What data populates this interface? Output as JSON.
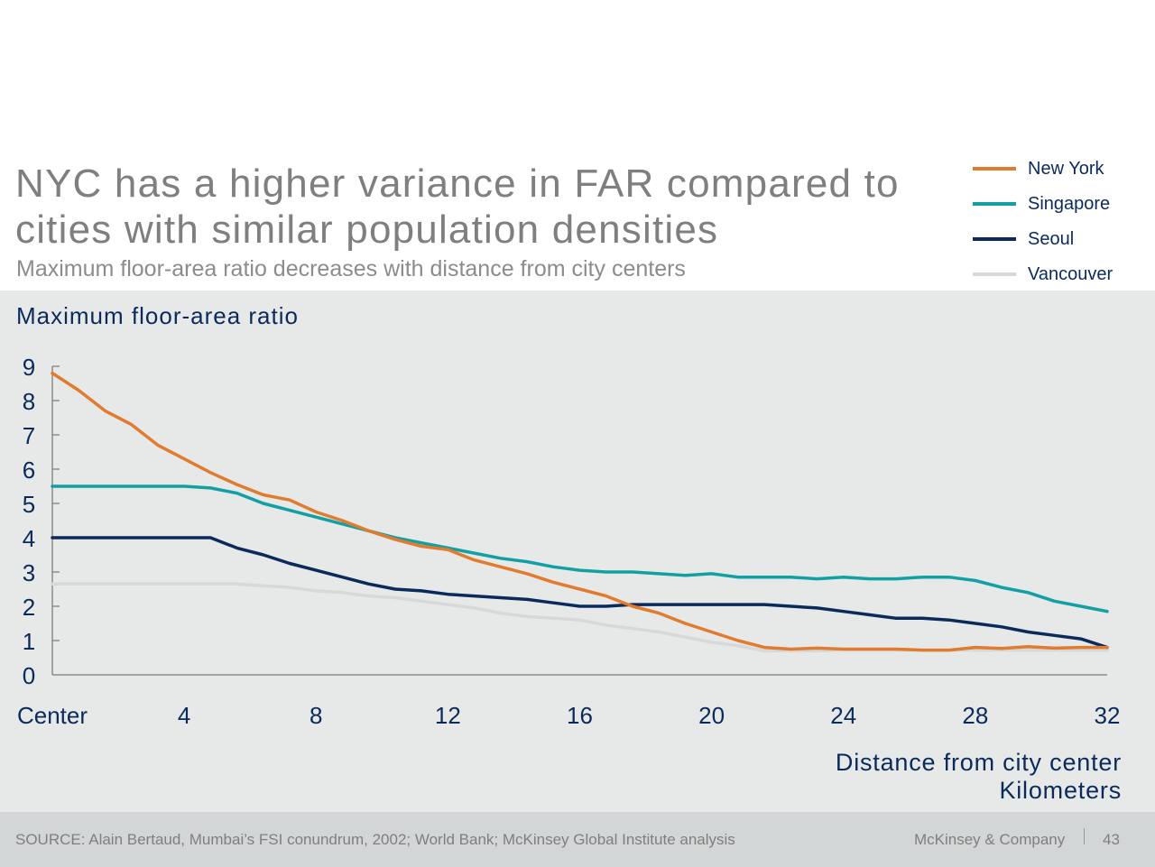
{
  "header": {
    "title": "NYC has a higher variance in FAR compared to cities with similar population densities",
    "subtitle": "Maximum floor-area ratio decreases with distance from city centers"
  },
  "legend": [
    {
      "name": "New York",
      "color": "#e07b2f"
    },
    {
      "name": "Singapore",
      "color": "#12a0a3"
    },
    {
      "name": "Seoul",
      "color": "#0b2a5b"
    },
    {
      "name": "Vancouver",
      "color": "#d7d9d9"
    }
  ],
  "chart_data": {
    "type": "line",
    "ylabel": "Maximum floor-area ratio",
    "xlabel": "Distance from city center",
    "xunit": "Kilometers",
    "xlim": [
      0,
      32
    ],
    "ylim": [
      0,
      9
    ],
    "x_ticks": [
      "Center",
      "4",
      "8",
      "12",
      "16",
      "20",
      "24",
      "28",
      "32"
    ],
    "y_ticks": [
      "0",
      "1",
      "2",
      "3",
      "4",
      "5",
      "6",
      "7",
      "8",
      "9"
    ],
    "grid": false,
    "legend_position": "top-right",
    "x": [
      0,
      0.8,
      1.6,
      2.4,
      3.2,
      4.0,
      4.8,
      5.6,
      6.4,
      7.2,
      8.0,
      8.8,
      9.6,
      10.4,
      11.2,
      12.0,
      12.8,
      13.6,
      14.4,
      15.2,
      16.0,
      16.8,
      17.6,
      18.4,
      19.2,
      20.0,
      20.8,
      21.6,
      22.4,
      23.2,
      24.0,
      24.8,
      25.6,
      26.4,
      27.2,
      28.0,
      28.8,
      29.6,
      30.4,
      31.2,
      32.0
    ],
    "series": [
      {
        "name": "New York",
        "color": "#e07b2f",
        "values": [
          8.8,
          8.3,
          7.7,
          7.3,
          6.7,
          6.3,
          5.9,
          5.55,
          5.25,
          5.1,
          4.75,
          4.5,
          4.2,
          3.95,
          3.75,
          3.65,
          3.35,
          3.15,
          2.95,
          2.7,
          2.5,
          2.3,
          2.0,
          1.8,
          1.5,
          1.25,
          1.0,
          0.8,
          0.75,
          0.78,
          0.75,
          0.75,
          0.75,
          0.72,
          0.72,
          0.8,
          0.77,
          0.82,
          0.78,
          0.8,
          0.8
        ]
      },
      {
        "name": "Singapore",
        "color": "#12a0a3",
        "values": [
          5.5,
          5.5,
          5.5,
          5.5,
          5.5,
          5.5,
          5.45,
          5.3,
          5.0,
          4.8,
          4.6,
          4.4,
          4.2,
          4.0,
          3.85,
          3.7,
          3.55,
          3.4,
          3.3,
          3.15,
          3.05,
          3.0,
          3.0,
          2.95,
          2.9,
          2.95,
          2.85,
          2.85,
          2.85,
          2.8,
          2.85,
          2.8,
          2.8,
          2.85,
          2.85,
          2.75,
          2.55,
          2.4,
          2.15,
          2.0,
          1.85
        ]
      },
      {
        "name": "Seoul",
        "color": "#0b2a5b",
        "values": [
          4.0,
          4.0,
          4.0,
          4.0,
          4.0,
          4.0,
          4.0,
          3.7,
          3.5,
          3.25,
          3.05,
          2.85,
          2.65,
          2.5,
          2.45,
          2.35,
          2.3,
          2.25,
          2.2,
          2.1,
          2.0,
          2.0,
          2.05,
          2.05,
          2.05,
          2.05,
          2.05,
          2.05,
          2.0,
          1.95,
          1.85,
          1.75,
          1.65,
          1.65,
          1.6,
          1.5,
          1.4,
          1.25,
          1.15,
          1.05,
          0.8
        ]
      },
      {
        "name": "Vancouver",
        "color": "#d7d9d9",
        "values": [
          2.65,
          2.65,
          2.65,
          2.65,
          2.65,
          2.65,
          2.65,
          2.65,
          2.6,
          2.55,
          2.45,
          2.4,
          2.3,
          2.25,
          2.15,
          2.05,
          1.95,
          1.8,
          1.7,
          1.65,
          1.6,
          1.45,
          1.35,
          1.25,
          1.1,
          0.95,
          0.85,
          0.7,
          0.7,
          0.7,
          0.72,
          0.72,
          0.72,
          0.72,
          0.72,
          0.72,
          0.72,
          0.72,
          0.72,
          0.72,
          0.72
        ]
      }
    ]
  },
  "footer": {
    "source": "SOURCE:  Alain Bertaud, Mumbai’s FSI conundrum, 2002; World Bank; McKinsey Global Institute analysis",
    "brand": "McKinsey & Company",
    "page": "43"
  }
}
